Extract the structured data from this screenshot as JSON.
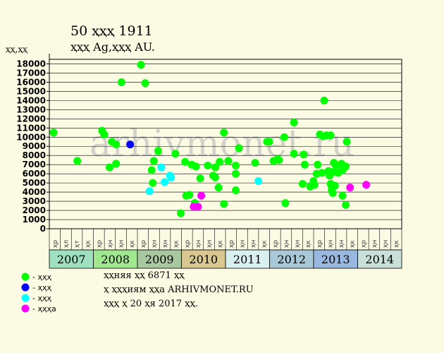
{
  "header": {
    "title": "50 ҳҳҳ 1911",
    "subtitle": "ҳҳҳ Ag,ҳҳҳ AU.",
    "y_unit": "ҳҳ,ҳҳ"
  },
  "watermark": "arhivmonet.ru",
  "legend": [
    {
      "label": "- ҳҳҳ",
      "color": "#00ff00"
    },
    {
      "label": "- ҳҳҳ",
      "color": "#0000ff"
    },
    {
      "label": "- ҳҳҳ",
      "color": "#00ffff"
    },
    {
      "label": "- ҳҳҳа",
      "color": "#ff00ff"
    }
  ],
  "info": [
    "ҳҳняя ҳҳ 6871 ҳҳ",
    "ҳ ҳҳҳиям ҳҳа ARHIVMONET.RU",
    "ҳҳҳ ҳ 20 ҳя 2017 ҳҳ."
  ],
  "chart_data": {
    "type": "scatter",
    "ylim": [
      0,
      18500
    ],
    "yticks": [
      0,
      1000,
      2000,
      3000,
      4000,
      5000,
      6000,
      7000,
      8000,
      9000,
      10000,
      11000,
      12000,
      13000,
      14000,
      15000,
      16000,
      17000,
      18000
    ],
    "x_labels": [
      "ҳр",
      "ҳл",
      "ҳт",
      "ҳк",
      "ҳр",
      "ҳн",
      "ҳн",
      "ҳк",
      "ҳр",
      "ҳн",
      "ҳн",
      "ҳк",
      "ҳр",
      "ҳн",
      "ҳн",
      "ҳк",
      "ҳр",
      "ҳн",
      "ҳн",
      "ҳк",
      "ҳр",
      "ҳн",
      "ҳн",
      "ҳк",
      "ҳр",
      "ҳн",
      "ҳн",
      "ҳк",
      "ҳр",
      "ҳн",
      "ҳн",
      "ҳк"
    ],
    "years": [
      {
        "label": "2007",
        "color": "#9fe0c0"
      },
      {
        "label": "2008",
        "color": "#a0e890"
      },
      {
        "label": "2009",
        "color": "#a8c8a0"
      },
      {
        "label": "2010",
        "color": "#d8c890"
      },
      {
        "label": "2011",
        "color": "#d8f0f0"
      },
      {
        "label": "2012",
        "color": "#a8c8d8"
      },
      {
        "label": "2013",
        "color": "#98b8e0"
      },
      {
        "label": "2014",
        "color": "#c8e0d8"
      }
    ],
    "series": [
      {
        "name": "ҳҳҳ",
        "color": "#00ff00",
        "points": [
          [
            0.0,
            10500
          ],
          [
            2.2,
            7400
          ],
          [
            4.5,
            10700
          ],
          [
            4.7,
            10300
          ],
          [
            5.2,
            6700
          ],
          [
            5.4,
            9500
          ],
          [
            5.8,
            9200
          ],
          [
            5.8,
            7100
          ],
          [
            6.3,
            16000
          ],
          [
            8.1,
            17900
          ],
          [
            8.5,
            15900
          ],
          [
            9.1,
            6400
          ],
          [
            9.2,
            5000
          ],
          [
            9.3,
            7400
          ],
          [
            9.7,
            8500
          ],
          [
            11.3,
            8200
          ],
          [
            11.8,
            1700
          ],
          [
            12.2,
            7300
          ],
          [
            12.3,
            3600
          ],
          [
            12.6,
            3700
          ],
          [
            12.8,
            7000
          ],
          [
            13.1,
            2800
          ],
          [
            13.2,
            6800
          ],
          [
            13.6,
            5500
          ],
          [
            14.3,
            6900
          ],
          [
            14.8,
            5800
          ],
          [
            15.0,
            5600
          ],
          [
            15.0,
            6700
          ],
          [
            15.3,
            4500
          ],
          [
            15.4,
            7300
          ],
          [
            15.8,
            10500
          ],
          [
            15.8,
            2700
          ],
          [
            16.2,
            7400
          ],
          [
            16.9,
            6000
          ],
          [
            16.9,
            6900
          ],
          [
            16.9,
            4200
          ],
          [
            17.2,
            8800
          ],
          [
            18.7,
            7200
          ],
          [
            19.8,
            9500
          ],
          [
            20.0,
            9500
          ],
          [
            20.4,
            7400
          ],
          [
            20.8,
            7600
          ],
          [
            20.9,
            7500
          ],
          [
            21.4,
            10000
          ],
          [
            21.5,
            2800
          ],
          [
            22.3,
            11600
          ],
          [
            22.3,
            8200
          ],
          [
            23.1,
            4900
          ],
          [
            23.2,
            8100
          ],
          [
            23.3,
            7000
          ],
          [
            23.8,
            4600
          ],
          [
            24.1,
            5200
          ],
          [
            24.2,
            4800
          ],
          [
            24.4,
            6000
          ],
          [
            24.5,
            7000
          ],
          [
            24.7,
            10300
          ],
          [
            24.9,
            6100
          ],
          [
            25.0,
            10100
          ],
          [
            25.1,
            14000
          ],
          [
            25.3,
            10200
          ],
          [
            25.5,
            6300
          ],
          [
            25.6,
            5800
          ],
          [
            25.7,
            10200
          ],
          [
            25.7,
            4900
          ],
          [
            25.8,
            4200
          ],
          [
            25.8,
            4600
          ],
          [
            25.9,
            6200
          ],
          [
            25.9,
            3900
          ],
          [
            26.0,
            7200
          ],
          [
            26.1,
            4700
          ],
          [
            26.2,
            6900
          ],
          [
            26.4,
            6100
          ],
          [
            26.7,
            7100
          ],
          [
            26.8,
            6400
          ],
          [
            26.8,
            3600
          ],
          [
            27.1,
            6800
          ],
          [
            27.1,
            2600
          ],
          [
            27.2,
            9500
          ]
        ]
      },
      {
        "name": "ҳҳҳ",
        "color": "#0000ff",
        "points": [
          [
            7.1,
            9200
          ]
        ]
      },
      {
        "name": "ҳҳҳ",
        "color": "#00ffff",
        "points": [
          [
            8.9,
            4100
          ],
          [
            10.0,
            6700
          ],
          [
            10.3,
            5100
          ],
          [
            10.8,
            5800
          ],
          [
            10.9,
            5600
          ],
          [
            19.0,
            5200
          ]
        ]
      },
      {
        "name": "ҳҳҳа",
        "color": "#ff00ff",
        "points": [
          [
            13.0,
            2400
          ],
          [
            13.4,
            2400
          ],
          [
            13.7,
            3600
          ],
          [
            27.5,
            4500
          ],
          [
            29.0,
            4800
          ]
        ]
      }
    ]
  }
}
